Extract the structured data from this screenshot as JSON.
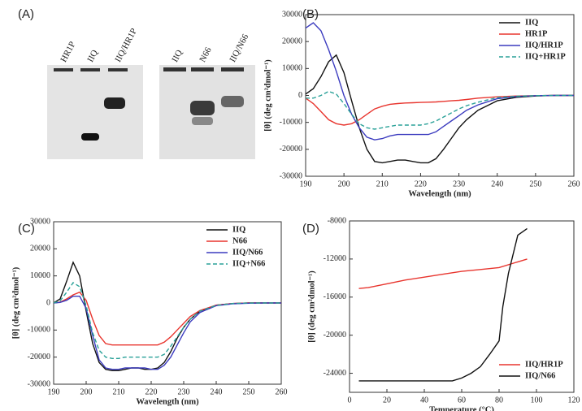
{
  "gel": {
    "panel_label": "(A)",
    "lanes": [
      "HR1P",
      "IIQ",
      "IIQ/HR1P",
      "IIQ",
      "N66",
      "IIQ/N66"
    ]
  },
  "chart_data": [
    {
      "type": "line",
      "panel_label": "(B)",
      "xlabel": "Wavelength (nm)",
      "ylabel": "[θ] (deg cm²dmol⁻¹)",
      "xlim": [
        190,
        260
      ],
      "xticks": [
        190,
        200,
        210,
        220,
        230,
        240,
        250,
        260
      ],
      "ylim": [
        -30000,
        30000
      ],
      "yticks": [
        -30000,
        -20000,
        -10000,
        0,
        10000,
        20000,
        30000
      ],
      "legend": "upper right",
      "x": [
        190,
        192,
        194,
        196,
        198,
        200,
        202,
        204,
        206,
        208,
        210,
        212,
        214,
        216,
        218,
        220,
        222,
        224,
        226,
        228,
        230,
        232,
        235,
        240,
        245,
        250,
        255,
        260
      ],
      "series": [
        {
          "name": "IIQ",
          "color": "#111111",
          "dashed": false,
          "values": [
            500,
            2500,
            7000,
            12500,
            15000,
            8500,
            -2000,
            -12000,
            -20000,
            -24500,
            -25000,
            -24500,
            -24000,
            -24000,
            -24500,
            -25000,
            -25000,
            -23500,
            -20000,
            -16000,
            -12000,
            -9000,
            -5500,
            -2000,
            -700,
            -200,
            0,
            0
          ]
        },
        {
          "name": "HR1P",
          "color": "#e8352e",
          "dashed": false,
          "values": [
            -1000,
            -3000,
            -6000,
            -9000,
            -10500,
            -11000,
            -10500,
            -9000,
            -7000,
            -5000,
            -4000,
            -3300,
            -3000,
            -2800,
            -2700,
            -2600,
            -2500,
            -2400,
            -2200,
            -2000,
            -1800,
            -1500,
            -1000,
            -500,
            -200,
            -100,
            0,
            0
          ]
        },
        {
          "name": "IIQ/HR1P",
          "color": "#3b3bbf",
          "dashed": false,
          "values": [
            25000,
            27000,
            24000,
            17000,
            9000,
            0,
            -7000,
            -12000,
            -15500,
            -16500,
            -16000,
            -15000,
            -14500,
            -14500,
            -14500,
            -14500,
            -14500,
            -13500,
            -11500,
            -9500,
            -7500,
            -5500,
            -3500,
            -1200,
            -400,
            -100,
            0,
            0
          ]
        },
        {
          "name": "IIQ+HR1P",
          "color": "#2aa198",
          "dashed": true,
          "values": [
            -1000,
            -1000,
            0,
            1500,
            500,
            -3000,
            -7000,
            -10500,
            -12000,
            -12500,
            -12000,
            -11500,
            -11000,
            -11000,
            -11000,
            -11000,
            -10500,
            -9500,
            -8000,
            -6500,
            -5000,
            -3800,
            -2500,
            -800,
            -300,
            -100,
            0,
            0
          ]
        }
      ]
    },
    {
      "type": "line",
      "panel_label": "(C)",
      "xlabel": "Wavelength (nm)",
      "ylabel": "[θ] (deg cm²dmol⁻¹)",
      "xlim": [
        190,
        260
      ],
      "xticks": [
        190,
        200,
        210,
        220,
        230,
        240,
        250,
        260
      ],
      "ylim": [
        -30000,
        30000
      ],
      "yticks": [
        -30000,
        -20000,
        -10000,
        0,
        10000,
        20000,
        30000
      ],
      "legend": "upper right",
      "x": [
        190,
        192,
        194,
        196,
        198,
        200,
        202,
        204,
        206,
        208,
        210,
        212,
        214,
        216,
        218,
        220,
        222,
        224,
        226,
        228,
        230,
        232,
        235,
        240,
        245,
        250,
        255,
        260
      ],
      "series": [
        {
          "name": "IIQ",
          "color": "#111111",
          "dashed": false,
          "values": [
            0,
            1500,
            8000,
            15000,
            10000,
            -3000,
            -15000,
            -22000,
            -24500,
            -25000,
            -25000,
            -24500,
            -24000,
            -24000,
            -24500,
            -24500,
            -24000,
            -22000,
            -18000,
            -13000,
            -9000,
            -6000,
            -3000,
            -800,
            -200,
            0,
            0,
            0
          ]
        },
        {
          "name": "N66",
          "color": "#e8352e",
          "dashed": false,
          "values": [
            0,
            300,
            1500,
            3000,
            4000,
            1000,
            -6000,
            -12000,
            -15000,
            -15500,
            -15500,
            -15500,
            -15500,
            -15500,
            -15500,
            -15500,
            -15500,
            -14500,
            -12500,
            -10000,
            -7500,
            -5000,
            -2800,
            -800,
            -200,
            0,
            0,
            0
          ]
        },
        {
          "name": "IIQ/N66",
          "color": "#3b3bbf",
          "dashed": false,
          "values": [
            0,
            200,
            1000,
            2500,
            2500,
            -2000,
            -12000,
            -21000,
            -24000,
            -24500,
            -24500,
            -24000,
            -24000,
            -24000,
            -24000,
            -24500,
            -24500,
            -23000,
            -20000,
            -15500,
            -11000,
            -7000,
            -3500,
            -1000,
            -300,
            -100,
            0,
            0
          ]
        },
        {
          "name": "IIQ+N66",
          "color": "#2aa198",
          "dashed": true,
          "values": [
            0,
            800,
            4000,
            7500,
            6000,
            -1000,
            -11000,
            -17500,
            -20000,
            -20500,
            -20500,
            -20000,
            -20000,
            -20000,
            -20000,
            -20000,
            -20000,
            -19000,
            -16000,
            -12500,
            -9000,
            -6000,
            -3000,
            -900,
            -200,
            0,
            0,
            0
          ]
        }
      ]
    },
    {
      "type": "line",
      "panel_label": "(D)",
      "xlabel": "Temperature (°C)",
      "ylabel": "[θ] (deg cm²dmol⁻¹)",
      "xlim": [
        0,
        120
      ],
      "xticks": [
        0,
        20,
        40,
        60,
        80,
        100,
        120
      ],
      "ylim": [
        -26000,
        -8000
      ],
      "yticks": [
        -24000,
        -20000,
        -16000,
        -12000,
        -8000
      ],
      "legend": "lower right",
      "series": [
        {
          "name": "IIQ/HR1P",
          "color": "#e8352e",
          "dashed": false,
          "x": [
            5,
            10,
            20,
            30,
            40,
            50,
            60,
            70,
            80,
            90,
            95
          ],
          "values": [
            -15100,
            -15000,
            -14600,
            -14200,
            -13900,
            -13600,
            -13300,
            -13100,
            -12900,
            -12300,
            -12000
          ]
        },
        {
          "name": "IIQ/N66",
          "color": "#111111",
          "dashed": false,
          "x": [
            5,
            10,
            20,
            30,
            40,
            50,
            55,
            60,
            65,
            70,
            75,
            80,
            82,
            85,
            90,
            95
          ],
          "values": [
            -24800,
            -24800,
            -24800,
            -24800,
            -24800,
            -24800,
            -24800,
            -24500,
            -24000,
            -23300,
            -22000,
            -20600,
            -17000,
            -13500,
            -9500,
            -8800
          ]
        }
      ]
    }
  ]
}
